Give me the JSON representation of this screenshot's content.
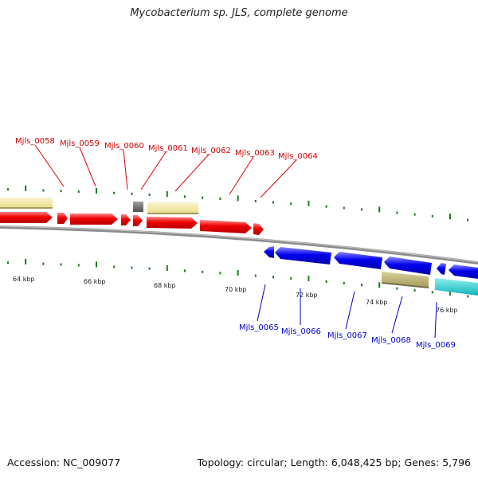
{
  "title": "Mycobacterium sp. JLS, complete genome",
  "footer": {
    "accession": "Accession: NC_009077",
    "summary": "Topology: circular; Length: 6,048,425 bp; Genes: 5,796"
  },
  "colors": {
    "forward_gene": "#ee0000",
    "reverse_gene": "#0000ee",
    "pale_gene": "#f5e6a0",
    "olive_gene": "#b8ad70",
    "cyan_gene": "#18c8cc",
    "grey_gene": "#707070",
    "tick": "#1a7a1a",
    "backbone": "#8c8c8c",
    "top_label": "#cc0000",
    "bottom_label": "#0000cc"
  },
  "top_genes": [
    "Mjls_0058",
    "Mjls_0059",
    "Mjls_0060",
    "Mjls_0061",
    "Mjls_0062",
    "Mjls_0063",
    "Mjls_0064"
  ],
  "bottom_genes": [
    "Mjls_0065",
    "Mjls_0066",
    "Mjls_0067",
    "Mjls_0068",
    "Mjls_0069"
  ],
  "kbp_labels": [
    "64 kbp",
    "66 kbp",
    "68 kbp",
    "70 kbp",
    "72 kbp",
    "74 kbp",
    "76 kbp"
  ]
}
